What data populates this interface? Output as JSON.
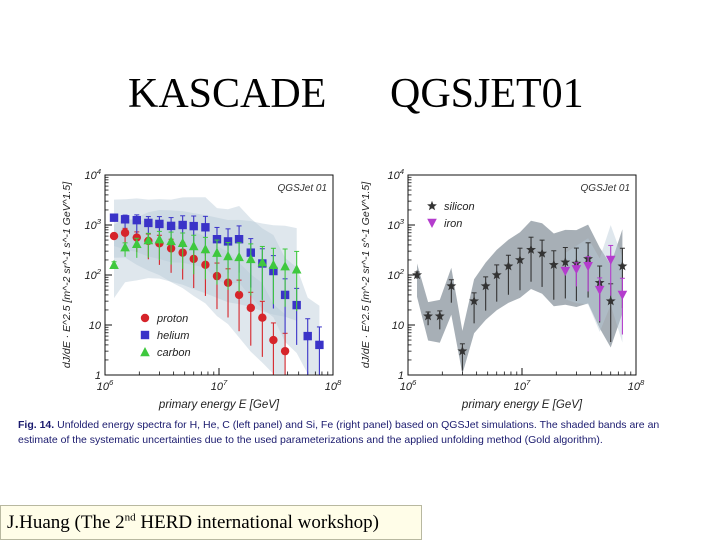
{
  "slide": {
    "title_left": "KASCADE",
    "title_right": "QGSJET01",
    "caption_label": "Fig. 14.",
    "caption_text": "Unfolded energy spectra for H, He, C (left panel) and Si, Fe (right panel) based on QGSJet simulations. The shaded bands are an estimate of the systematic uncertainties due to the used parameterizations and the applied unfolding method (Gold algorithm).",
    "footer_pre": "J.Huang (The 2",
    "footer_sup": "nd",
    "footer_post": " HERD international workshop)"
  },
  "chart_data": [
    {
      "type": "scatter",
      "panel": "left",
      "model_label": "QGSJet 01",
      "xlabel": "primary energy E  [GeV]",
      "ylabel": "dJ/dE · E^2.5  [m^-2 sr^-1 s^-1 GeV^1.5]",
      "x_scale": "log",
      "y_scale": "log",
      "xlim": [
        1000000,
        100000000
      ],
      "ylim": [
        1,
        10000
      ],
      "x_ticks": [
        "10^6",
        "10^7",
        "10^8"
      ],
      "y_ticks": [
        "1",
        "10",
        "10^2",
        "10^3",
        "10^4"
      ],
      "legend": [
        "proton",
        "helium",
        "carbon"
      ],
      "legend_position": "bottom-left",
      "series": [
        {
          "name": "proton",
          "color": "#d6242a",
          "marker": "circle",
          "x": [
            1200000,
            1500000,
            1900000,
            2400000,
            3000000,
            3800000,
            4800000,
            6000000,
            7600000,
            9600000,
            12000000,
            15000000,
            19000000,
            24000000,
            30000000,
            38000000
          ],
          "y": [
            600,
            700,
            560,
            480,
            430,
            340,
            280,
            210,
            160,
            95,
            70,
            40,
            22,
            14,
            5,
            3
          ]
        },
        {
          "name": "helium",
          "color": "#3a33c8",
          "marker": "square",
          "x": [
            1200000,
            1500000,
            1900000,
            2400000,
            3000000,
            3800000,
            4800000,
            6000000,
            7600000,
            9600000,
            12000000,
            15000000,
            19000000,
            24000000,
            30000000,
            38000000,
            48000000,
            60000000,
            76000000
          ],
          "y": [
            1400,
            1300,
            1250,
            1100,
            1050,
            960,
            1000,
            950,
            900,
            520,
            470,
            520,
            280,
            170,
            120,
            40,
            25,
            6,
            4
          ]
        },
        {
          "name": "carbon",
          "color": "#3ec83e",
          "marker": "triangle",
          "x": [
            1200000,
            1500000,
            1900000,
            2400000,
            3000000,
            3800000,
            4800000,
            6000000,
            7600000,
            9600000,
            12000000,
            15000000,
            19000000,
            24000000,
            30000000,
            38000000,
            48000000
          ],
          "y": [
            160,
            360,
            420,
            500,
            520,
            480,
            440,
            380,
            330,
            280,
            240,
            230,
            210,
            180,
            160,
            150,
            130
          ]
        }
      ]
    },
    {
      "type": "scatter",
      "panel": "right",
      "model_label": "QGSJet 01",
      "xlabel": "primary energy E  [GeV]",
      "ylabel": "dJ/dE · E^2.5  [m^-2 sr^-1 s^-1 GeV^1.5]",
      "x_scale": "log",
      "y_scale": "log",
      "xlim": [
        1000000,
        100000000
      ],
      "ylim": [
        1,
        10000
      ],
      "x_ticks": [
        "10^6",
        "10^7",
        "10^8"
      ],
      "y_ticks": [
        "1",
        "10",
        "10^2",
        "10^3",
        "10^4"
      ],
      "legend": [
        "silicon",
        "iron"
      ],
      "legend_position": "top-left",
      "series": [
        {
          "name": "silicon",
          "color": "#333333",
          "marker": "star",
          "x": [
            1200000,
            1500000,
            1900000,
            2400000,
            3000000,
            3800000,
            4800000,
            6000000,
            7600000,
            9600000,
            12000000,
            15000000,
            19000000,
            24000000,
            30000000,
            38000000,
            48000000,
            60000000,
            76000000
          ],
          "y": [
            100,
            15,
            15,
            60,
            3,
            30,
            60,
            100,
            150,
            200,
            320,
            270,
            160,
            180,
            170,
            210,
            70,
            30,
            150
          ]
        },
        {
          "name": "iron",
          "color": "#b43ccd",
          "marker": "triangle-down",
          "x": [
            24000000,
            30000000,
            38000000,
            48000000,
            60000000,
            76000000
          ],
          "y": [
            120,
            130,
            150,
            50,
            200,
            40
          ]
        }
      ]
    }
  ]
}
